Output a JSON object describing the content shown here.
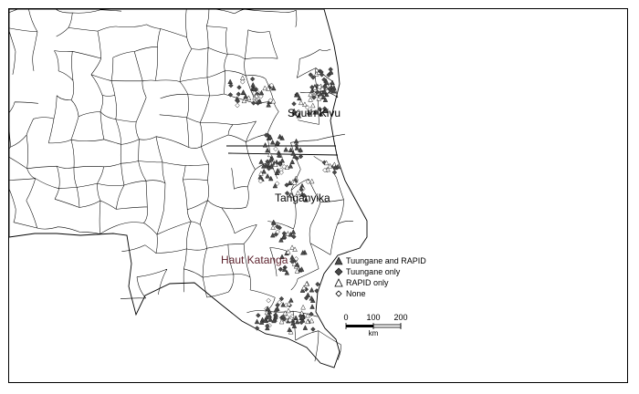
{
  "map": {
    "regions": [
      {
        "id": "south-kivu",
        "label": "South Kivu"
      },
      {
        "id": "tanganyika",
        "label": "Tanganyika"
      },
      {
        "id": "haut-katanga",
        "label": "Haut Katanga"
      }
    ],
    "legend": [
      {
        "label": "Tuungane and RAPID",
        "symbol": "filled-triangle"
      },
      {
        "label": "Tuungane only",
        "symbol": "filled-diamond"
      },
      {
        "label": "RAPID only",
        "symbol": "open-triangle"
      },
      {
        "label": "None",
        "symbol": "open-diamond"
      }
    ],
    "scale": {
      "ticks": [
        "0",
        "100",
        "200"
      ],
      "unit": "km"
    },
    "colors": {
      "boundary": "#000000",
      "point": "#4a4a4a",
      "haut_label": "#5a1f2a"
    }
  }
}
